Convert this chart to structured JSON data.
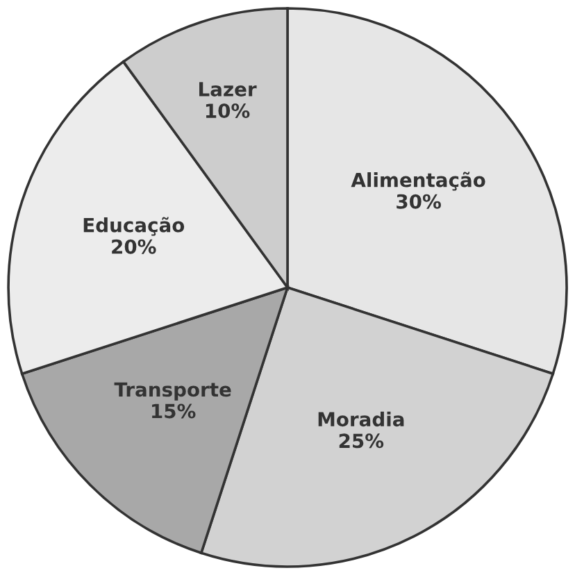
{
  "chart_data": {
    "type": "pie",
    "categories": [
      "Alimentação",
      "Moradia",
      "Transporte",
      "Educação",
      "Lazer"
    ],
    "values": [
      30,
      25,
      15,
      20,
      10
    ],
    "value_labels": [
      "30%",
      "25%",
      "15%",
      "20%",
      "10%"
    ],
    "colors": [
      "#e6e6e6",
      "#d2d2d2",
      "#a8a8a8",
      "#ececec",
      "#cdcdcd"
    ],
    "legend": false
  }
}
